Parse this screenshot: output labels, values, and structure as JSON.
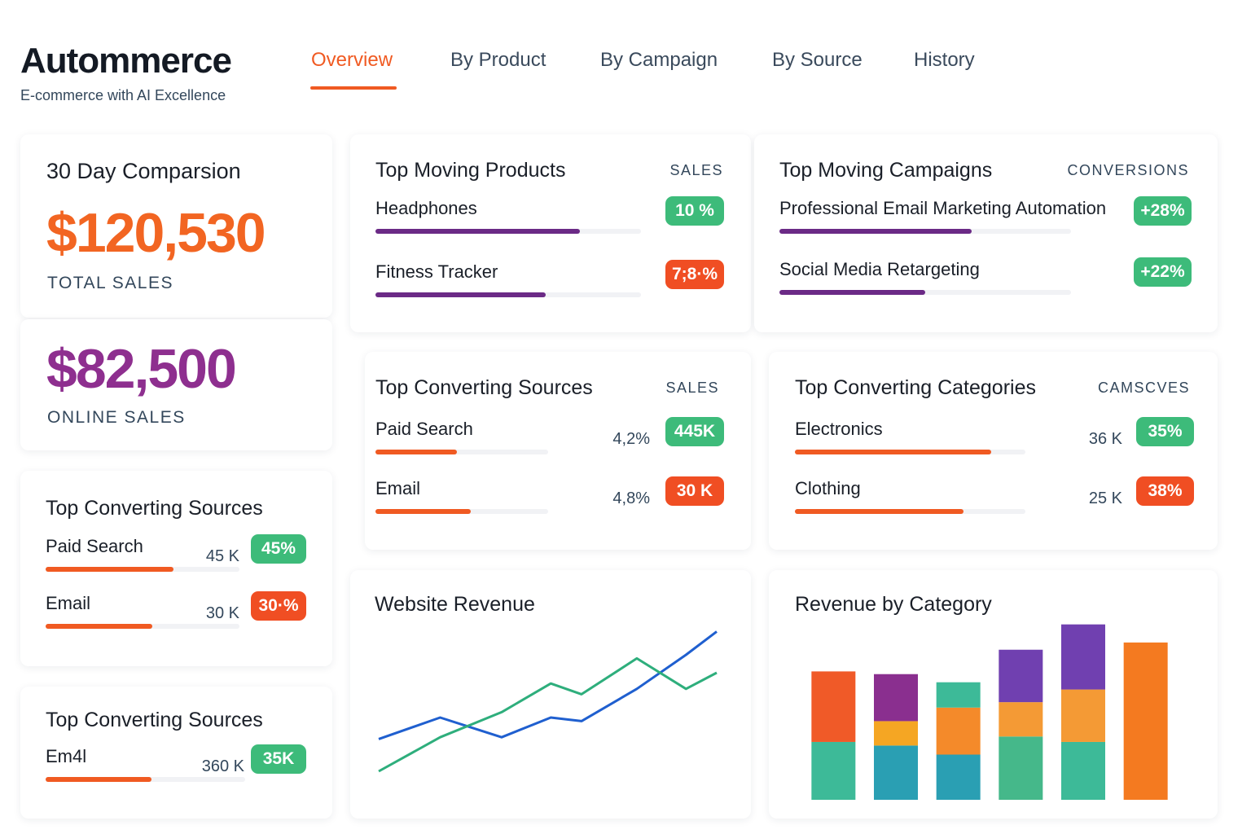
{
  "header": {
    "brand": "Autommerce",
    "tagline": "E-commerce with AI Excellence"
  },
  "nav": {
    "items": [
      "Overview",
      "By Product",
      "By Campaign",
      "By Source",
      "History"
    ],
    "active": 0
  },
  "cards": {
    "comparison": {
      "title": "30 Day Comparsion",
      "total_value": "$120,530",
      "total_label": "TOTAL SALES",
      "online_value": "$82,500",
      "online_label": "ONLINE SALES"
    },
    "left1": {
      "title": "Top Converting Sources",
      "items": [
        {
          "name": "Paid Search",
          "value": "45 K",
          "badge": "45%",
          "tone": "green",
          "progress": 66
        },
        {
          "name": "Email",
          "value": "30 K",
          "badge": "30·%",
          "tone": "red",
          "progress": 55
        }
      ]
    },
    "left2": {
      "title": "Top Converting Sources",
      "items": [
        {
          "name": "Em4l",
          "value": "360 K",
          "badge": "35K",
          "tone": "green",
          "progress": 53
        }
      ]
    },
    "products": {
      "title": "Top Moving Products",
      "column": "SALES",
      "items": [
        {
          "name": "Headphones",
          "badge": "10 %",
          "tone": "green",
          "progress": 77
        },
        {
          "name": "Fitness Tracker",
          "badge": "7;8·%",
          "tone": "red",
          "progress": 64
        }
      ]
    },
    "campaigns": {
      "title": "Top Moving Campaigns",
      "column": "CONVERSIONS",
      "items": [
        {
          "name": "Professional Email Marketing Automation",
          "badge": "+28%",
          "tone": "green",
          "progress": 66
        },
        {
          "name": "Social Media Retargeting",
          "badge": "+22%",
          "tone": "green",
          "progress": 50
        }
      ]
    },
    "sources_mid": {
      "title": "Top Converting Sources",
      "column": "SALES",
      "items": [
        {
          "name": "Paid Search",
          "value": "4,2%",
          "badge": "445K",
          "tone": "green",
          "progress": 47
        },
        {
          "name": "Email",
          "value": "4,8%",
          "badge": "30 K",
          "tone": "red",
          "progress": 55
        }
      ]
    },
    "categories": {
      "title": "Top Converting Categories",
      "column": "CAMSCVES",
      "items": [
        {
          "name": "Electronics",
          "value": "36 K",
          "badge": "35%",
          "tone": "green",
          "progress": 85
        },
        {
          "name": "Clothing",
          "value": "25 K",
          "badge": "38%",
          "tone": "red",
          "progress": 73
        }
      ]
    }
  },
  "chart_data": [
    {
      "type": "line",
      "title": "Website Revenue",
      "x": [
        0,
        1,
        2,
        2.8,
        3.3,
        4.2,
        5,
        5.5
      ],
      "xlim": [
        0,
        5.5
      ],
      "ylim": [
        0,
        100
      ],
      "series": [
        {
          "color": "#1f5fcf",
          "values": [
            33,
            45,
            34,
            45,
            43,
            61,
            80,
            93
          ]
        },
        {
          "color": "#2eae7c",
          "values": [
            15,
            34,
            48,
            64,
            58,
            78,
            61,
            70
          ]
        }
      ]
    },
    {
      "type": "stacked_bar",
      "title": "Revenue by Category",
      "categories": [
        null,
        null,
        null,
        null,
        null,
        null
      ],
      "ylim": [
        0,
        100
      ],
      "series": [
        {
          "values": [
            32,
            30,
            25,
            35,
            32,
            87
          ],
          "colors": [
            "#3dba98",
            "#2a9fb3",
            "#2a9fb3",
            "#45b88a",
            "#3dba98",
            "#f47a20"
          ]
        },
        {
          "values": [
            39,
            13.5,
            26,
            19,
            29,
            null
          ],
          "colors": [
            "#f05a28",
            "#f5a623",
            "#f48a2a",
            "#f49a35",
            "#f49a35",
            null
          ]
        },
        {
          "values": [
            null,
            26,
            14,
            29,
            36,
            null
          ],
          "colors": [
            null,
            "#8a2f8f",
            "#3dba98",
            "#7040b0",
            "#7040b0",
            null
          ]
        }
      ]
    }
  ]
}
